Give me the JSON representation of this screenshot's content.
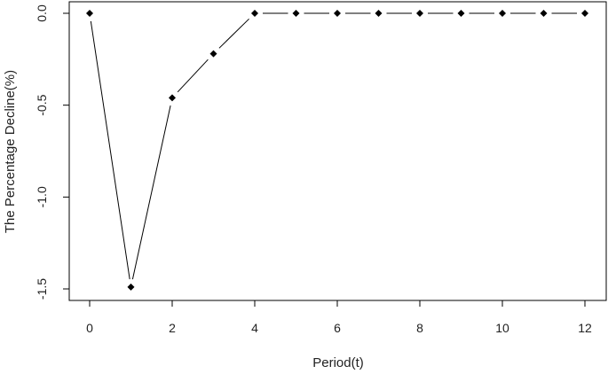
{
  "chart_data": {
    "type": "line",
    "xlabel": "Period(t)",
    "ylabel": "The Percentage Decline(%)",
    "x": [
      0,
      1,
      2,
      3,
      4,
      5,
      6,
      7,
      8,
      9,
      10,
      11,
      12
    ],
    "values": [
      0.0,
      -1.49,
      -0.46,
      -0.22,
      0.0,
      0.0,
      0.0,
      0.0,
      0.0,
      0.0,
      0.0,
      0.0,
      0.0
    ],
    "xlim": [
      0,
      12
    ],
    "ylim": [
      -1.5,
      0.0
    ],
    "x_ticks": [
      0,
      2,
      4,
      6,
      8,
      10,
      12
    ],
    "x_tick_labels": [
      "0",
      "2",
      "4",
      "6",
      "8",
      "10",
      "12"
    ],
    "y_ticks": [
      0.0,
      -0.5,
      -1.0,
      -1.5
    ],
    "y_tick_labels": [
      "0.0",
      "-0.5",
      "-1.0",
      "-1.5"
    ],
    "grid": false,
    "line_style": "broken line with gaps around points",
    "marker": "diamond",
    "colors": {
      "line": "#000000",
      "marker": "#000000",
      "frame": "#000000"
    }
  }
}
